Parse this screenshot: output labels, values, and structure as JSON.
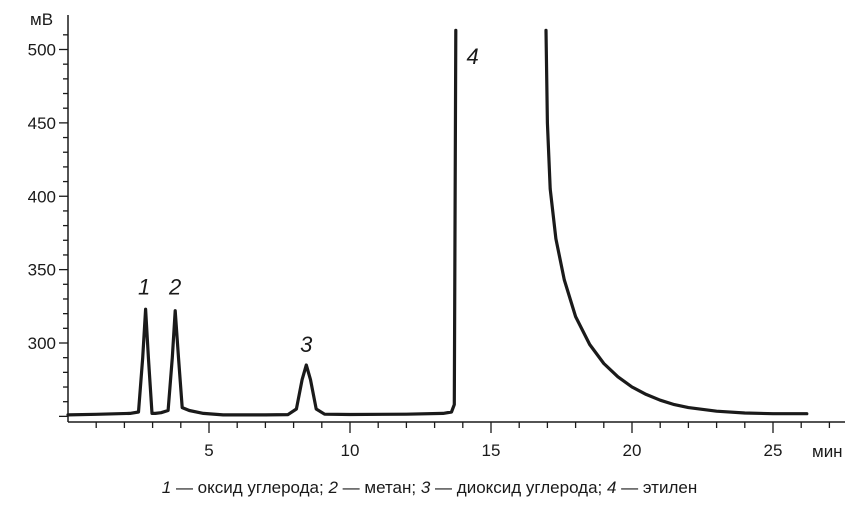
{
  "chart_data": {
    "type": "line",
    "xlabel": "мин",
    "ylabel": "мВ",
    "xlim": [
      0,
      27
    ],
    "ylim": [
      245,
      513
    ],
    "xticks": [
      5,
      10,
      15,
      20,
      25
    ],
    "xtick_labels": [
      "5",
      "10",
      "15",
      "20",
      "25"
    ],
    "yticks": [
      300,
      350,
      400,
      450,
      500
    ],
    "ytick_labels": [
      "300",
      "350",
      "400",
      "450",
      "500"
    ],
    "grid": false,
    "series": [
      {
        "values": [
          [
            0,
            251
          ],
          [
            1,
            251.4
          ],
          [
            1.8,
            251.8
          ],
          [
            2.2,
            252
          ],
          [
            2.5,
            253
          ],
          [
            2.65,
            290
          ],
          [
            2.75,
            323
          ],
          [
            2.85,
            290
          ],
          [
            2.98,
            252
          ],
          [
            3.1,
            252
          ],
          [
            3.3,
            252.5
          ],
          [
            3.55,
            254
          ],
          [
            3.7,
            290
          ],
          [
            3.8,
            322
          ],
          [
            3.92,
            290
          ],
          [
            4.05,
            256
          ],
          [
            4.3,
            254
          ],
          [
            4.8,
            252
          ],
          [
            5.5,
            251
          ],
          [
            7,
            251
          ],
          [
            7.8,
            251.2
          ],
          [
            8.1,
            255
          ],
          [
            8.3,
            275
          ],
          [
            8.45,
            285
          ],
          [
            8.6,
            275
          ],
          [
            8.8,
            255
          ],
          [
            9.1,
            251.5
          ],
          [
            10,
            251.3
          ],
          [
            12,
            251.5
          ],
          [
            13.3,
            252
          ],
          [
            13.6,
            253
          ],
          [
            13.7,
            258
          ],
          [
            13.75,
            513
          ]
        ]
      },
      {
        "values": [
          [
            16.95,
            513
          ],
          [
            17.0,
            450
          ],
          [
            17.1,
            405
          ],
          [
            17.3,
            371
          ],
          [
            17.6,
            343
          ],
          [
            18,
            318
          ],
          [
            18.5,
            299
          ],
          [
            19,
            286
          ],
          [
            19.5,
            277
          ],
          [
            20,
            270
          ],
          [
            20.5,
            265
          ],
          [
            21,
            261
          ],
          [
            21.5,
            258
          ],
          [
            22,
            256
          ],
          [
            23,
            253.5
          ],
          [
            24,
            252.3
          ],
          [
            25,
            251.8
          ],
          [
            26.2,
            251.8
          ]
        ]
      }
    ],
    "peak_labels": [
      {
        "text": "1",
        "x": 2.7,
        "y": 333
      },
      {
        "text": "2",
        "x": 3.8,
        "y": 333
      },
      {
        "text": "3",
        "x": 8.45,
        "y": 294
      },
      {
        "text": "4",
        "x": 14.35,
        "y": 490
      }
    ]
  },
  "caption": {
    "num1": "1",
    "text1": " — оксид углерода; ",
    "num2": "2",
    "text2": " — метан; ",
    "num3": "3",
    "text3": " — диоксид углерода; ",
    "num4": "4",
    "text4": " — этилен"
  }
}
